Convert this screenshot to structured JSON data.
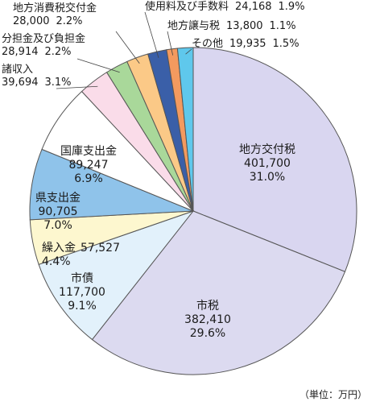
{
  "chart_data": {
    "type": "pie",
    "unit_note": "（単位：万円）",
    "slices": [
      {
        "name": "地方交付税",
        "value": 401700,
        "value_label": "401,700",
        "percent": "31.0%",
        "color": "#d9d6f0"
      },
      {
        "name": "市税",
        "value": 382410,
        "value_label": "382,410",
        "percent": "29.6%",
        "color": "#dcdaf0"
      },
      {
        "name": "市債",
        "value": 117700,
        "value_label": "117,700",
        "percent": "9.1%",
        "color": "#e2f1fb"
      },
      {
        "name": "繰入金",
        "value": 57527,
        "value_label": "57,527",
        "percent": "4.4%",
        "color": "#fdf7cf"
      },
      {
        "name": "県支出金",
        "value": 90705,
        "value_label": "90,705",
        "percent": "7.0%",
        "color": "#8fc3ea"
      },
      {
        "name": "国庫支出金",
        "value": 89247,
        "value_label": "89,247",
        "percent": "6.9%",
        "color": "#ffffff"
      },
      {
        "name": "諸収入",
        "value": 39694,
        "value_label": "39,694",
        "percent": "3.1%",
        "color": "#fadce9"
      },
      {
        "name": "分担金及び負担金",
        "value": 28914,
        "value_label": "28,914",
        "percent": "2.2%",
        "color": "#a9d89a"
      },
      {
        "name": "地方消費税交付金",
        "value": 28000,
        "value_label": "28,000",
        "percent": "2.2%",
        "color": "#fbc987"
      },
      {
        "name": "使用料及び手数料",
        "value": 24168,
        "value_label": "24,168",
        "percent": "1.9%",
        "color": "#3a5fa8"
      },
      {
        "name": "地方譲与税",
        "value": 13800,
        "value_label": "13,800",
        "percent": "1.1%",
        "color": "#f39a5f"
      },
      {
        "name": "その他",
        "value": 19935,
        "value_label": "19,935",
        "percent": "1.5%",
        "color": "#5fc8ec"
      }
    ]
  }
}
